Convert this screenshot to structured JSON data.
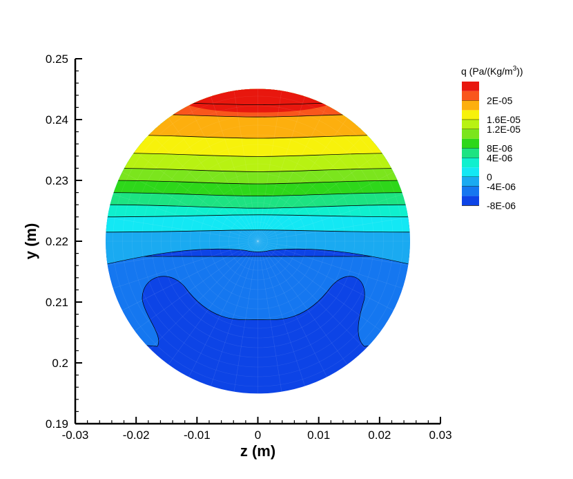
{
  "chart_data": {
    "type": "contour",
    "xlabel": "z  (m)",
    "ylabel": "y  (m)",
    "xlim": [
      -0.03,
      0.03
    ],
    "ylim": [
      0.19,
      0.25
    ],
    "xticks": [
      "-0.03",
      "-0.02",
      "-0.01",
      "0",
      "0.01",
      "0.02",
      "0.03"
    ],
    "yticks": [
      "0.19",
      "0.2",
      "0.21",
      "0.22",
      "0.23",
      "0.24",
      "0.25"
    ],
    "domain": {
      "shape": "circle",
      "center_z": 0.0,
      "center_y": 0.22,
      "radius": 0.025
    },
    "legend": {
      "title_prefix": "q  (Pa/(Kg/m",
      "title_sup": "3",
      "title_suffix": "))",
      "placement": "right",
      "levels": [
        {
          "label": "",
          "color": "#e8170e"
        },
        {
          "label": "2E-05",
          "color": "#f9561c"
        },
        {
          "label": "",
          "color": "#fdaf0e"
        },
        {
          "label": "1.6E-05",
          "color": "#f7f20b"
        },
        {
          "label": "1.2E-05",
          "color": "#b8f212"
        },
        {
          "label": "",
          "color": "#7be51d"
        },
        {
          "label": "8E-06",
          "color": "#2ed71a"
        },
        {
          "label": "4E-06",
          "color": "#1de382"
        },
        {
          "label": "",
          "color": "#0ff0ce"
        },
        {
          "label": "0",
          "color": "#13e8f4"
        },
        {
          "label": "-4E-06",
          "color": "#1aaaf1"
        },
        {
          "label": "",
          "color": "#1577f0"
        },
        {
          "label": "-8E-06",
          "color": "#0d44e6"
        }
      ]
    },
    "bands": [
      {
        "y": 0.2215,
        "color": "#13e8f4"
      },
      {
        "y": 0.224,
        "color": "#0ff0ce"
      },
      {
        "y": 0.226,
        "color": "#1de382"
      },
      {
        "y": 0.228,
        "color": "#2ed71a"
      },
      {
        "y": 0.23,
        "color": "#7be51d"
      },
      {
        "y": 0.232,
        "color": "#b8f212"
      },
      {
        "y": 0.2345,
        "color": "#f7f20b"
      },
      {
        "y": 0.2375,
        "color": "#fdaf0e"
      },
      {
        "y": 0.241,
        "color": "#f9561c"
      },
      {
        "y": 0.245,
        "color": "#e8170e"
      }
    ],
    "contour_lines_y": [
      0.2215,
      0.224,
      0.226,
      0.228,
      0.23,
      0.232,
      0.2345,
      0.2375,
      0.241,
      0.243
    ],
    "lower_regions": {
      "light_blue": {
        "color": "#1aaaf1",
        "top_y": 0.2195,
        "center_dip_y": 0.2178
      },
      "mid_blue": {
        "color": "#1577f0",
        "top_y": 0.2175,
        "center_y": 0.2071
      },
      "dark_blue": {
        "color": "#0d44e6"
      }
    }
  }
}
